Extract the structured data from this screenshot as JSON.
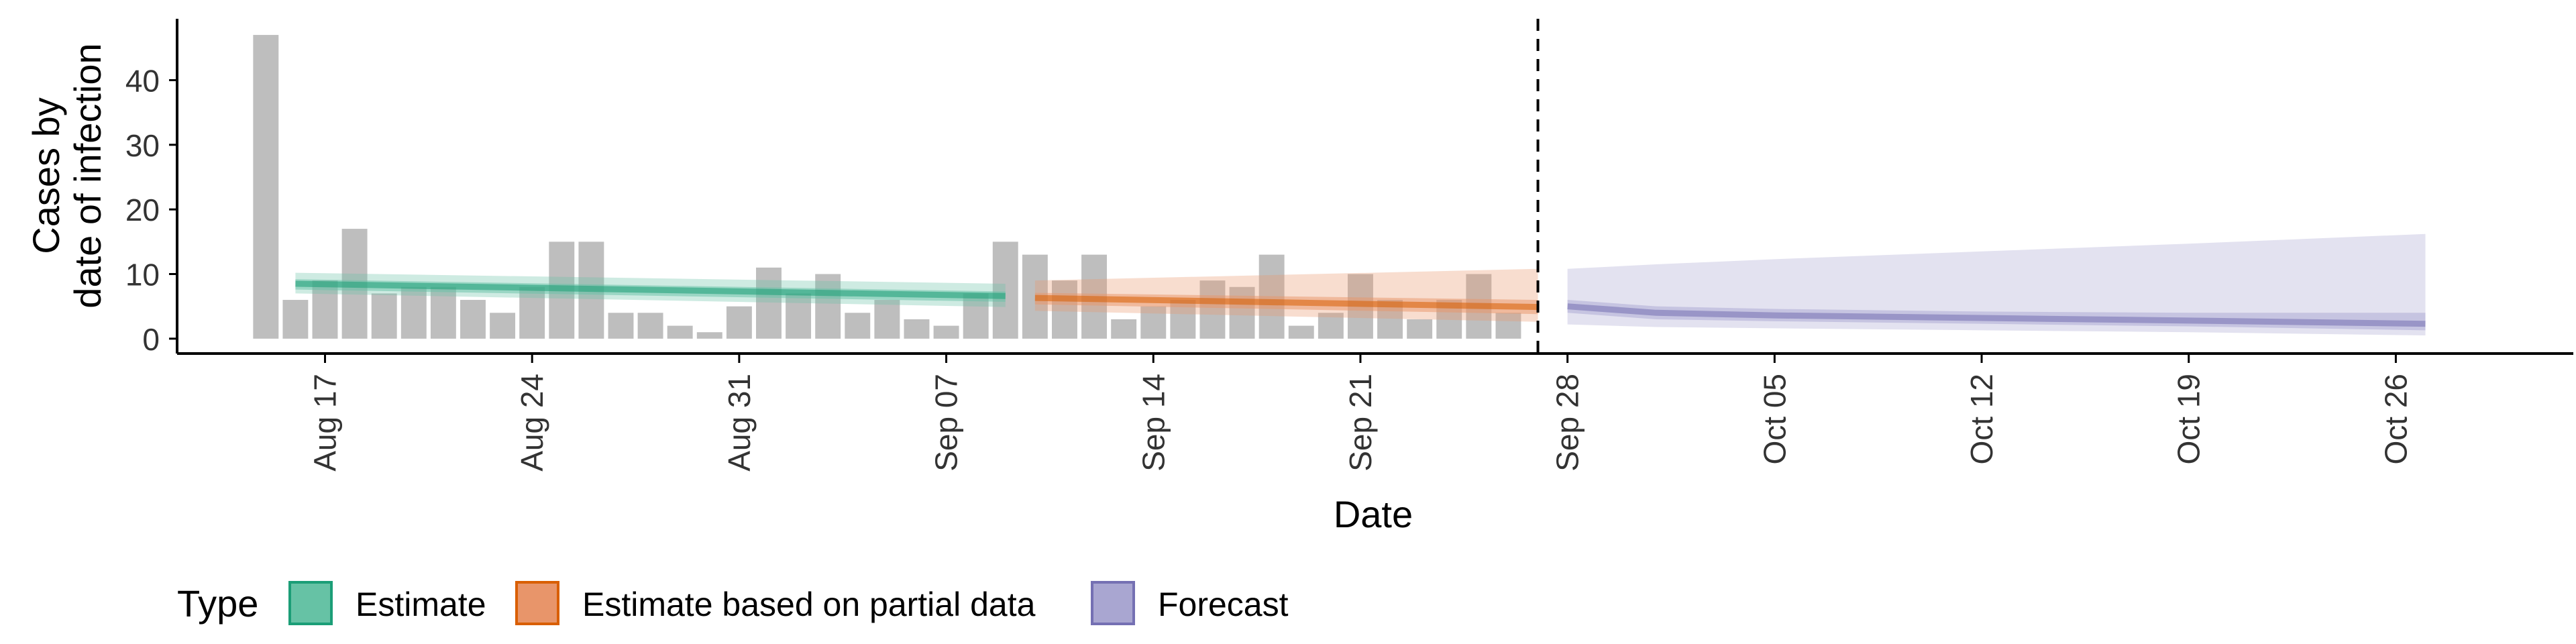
{
  "chart_data": {
    "type": "bar",
    "xlabel": "Date",
    "ylabel_lines": [
      "Cases by",
      "date of infection"
    ],
    "y_ticks": [
      0,
      10,
      20,
      30,
      40
    ],
    "ylim": [
      -2.3,
      49.5
    ],
    "xlim": [
      "2020-08-12",
      "2020-11-01"
    ],
    "x_ticks": [
      {
        "date": "2020-08-17",
        "label": "Aug 17"
      },
      {
        "date": "2020-08-24",
        "label": "Aug 24"
      },
      {
        "date": "2020-08-31",
        "label": "Aug 31"
      },
      {
        "date": "2020-09-07",
        "label": "Sep 07"
      },
      {
        "date": "2020-09-14",
        "label": "Sep 14"
      },
      {
        "date": "2020-09-21",
        "label": "Sep 21"
      },
      {
        "date": "2020-09-28",
        "label": "Sep 28"
      },
      {
        "date": "2020-10-05",
        "label": "Oct 05"
      },
      {
        "date": "2020-10-12",
        "label": "Oct 12"
      },
      {
        "date": "2020-10-19",
        "label": "Oct 19"
      },
      {
        "date": "2020-10-26",
        "label": "Oct 26"
      }
    ],
    "bars": {
      "dates": [
        "2020-08-15",
        "2020-08-16",
        "2020-08-17",
        "2020-08-18",
        "2020-08-19",
        "2020-08-20",
        "2020-08-21",
        "2020-08-22",
        "2020-08-23",
        "2020-08-24",
        "2020-08-25",
        "2020-08-26",
        "2020-08-27",
        "2020-08-28",
        "2020-08-29",
        "2020-08-30",
        "2020-08-31",
        "2020-09-01",
        "2020-09-02",
        "2020-09-03",
        "2020-09-04",
        "2020-09-05",
        "2020-09-06",
        "2020-09-07",
        "2020-09-08",
        "2020-09-09",
        "2020-09-10",
        "2020-09-11",
        "2020-09-12",
        "2020-09-13",
        "2020-09-14",
        "2020-09-15",
        "2020-09-16",
        "2020-09-17",
        "2020-09-18",
        "2020-09-19",
        "2020-09-20",
        "2020-09-21",
        "2020-09-22",
        "2020-09-23",
        "2020-09-24",
        "2020-09-25",
        "2020-09-26",
        "2020-09-27"
      ],
      "values": [
        47,
        6,
        9,
        17,
        7,
        8,
        8,
        6,
        4,
        8,
        15,
        15,
        4,
        4,
        2,
        1,
        5,
        11,
        7,
        10,
        4,
        6,
        3,
        2,
        7,
        15,
        13,
        9,
        13,
        3,
        5,
        6,
        9,
        8,
        13,
        2,
        4,
        10,
        6,
        3,
        6,
        10,
        4,
        0
      ],
      "color": "#bebebe"
    },
    "vline_date": "2020-09-27",
    "series": [
      {
        "name": "Estimate",
        "color": "#1b9e77",
        "fill": "#66c2a5",
        "x": [
          "2020-08-16",
          "2020-09-09"
        ],
        "median": [
          8.5,
          6.6
        ],
        "inner_low": [
          7.6,
          5.7
        ],
        "inner_high": [
          9.2,
          7.3
        ],
        "outer_low": [
          7.0,
          4.9
        ],
        "outer_high": [
          10.2,
          8.5
        ]
      },
      {
        "name": "Estimate based on partial data",
        "color": "#d95f02",
        "fill": "#e8956a",
        "x": [
          "2020-09-10",
          "2020-09-27"
        ],
        "median": [
          6.3,
          4.9
        ],
        "inner_low": [
          5.3,
          3.8
        ],
        "inner_high": [
          7.1,
          6.0
        ],
        "outer_low": [
          4.3,
          2.6
        ],
        "outer_high": [
          9.0,
          10.8
        ]
      },
      {
        "name": "Forecast",
        "color": "#7570b3",
        "fill": "#a9a6d1",
        "x": [
          "2020-09-28",
          "2020-10-01",
          "2020-10-05",
          "2020-10-12",
          "2020-10-19",
          "2020-10-27"
        ],
        "median": [
          5.0,
          4.0,
          3.6,
          3.2,
          2.8,
          2.3
        ],
        "inner_low": [
          4.0,
          3.0,
          2.7,
          2.3,
          1.9,
          1.3
        ],
        "inner_high": [
          6.0,
          5.0,
          4.6,
          4.2,
          4.0,
          4.0
        ],
        "outer_low": [
          2.2,
          1.8,
          1.6,
          1.3,
          1.0,
          0.5
        ],
        "outer_high": [
          10.8,
          11.5,
          12.3,
          13.5,
          14.7,
          16.2
        ]
      }
    ],
    "legend": {
      "title": "Type",
      "position": "bottom",
      "items": [
        "Estimate",
        "Estimate based on partial data",
        "Forecast"
      ]
    }
  }
}
